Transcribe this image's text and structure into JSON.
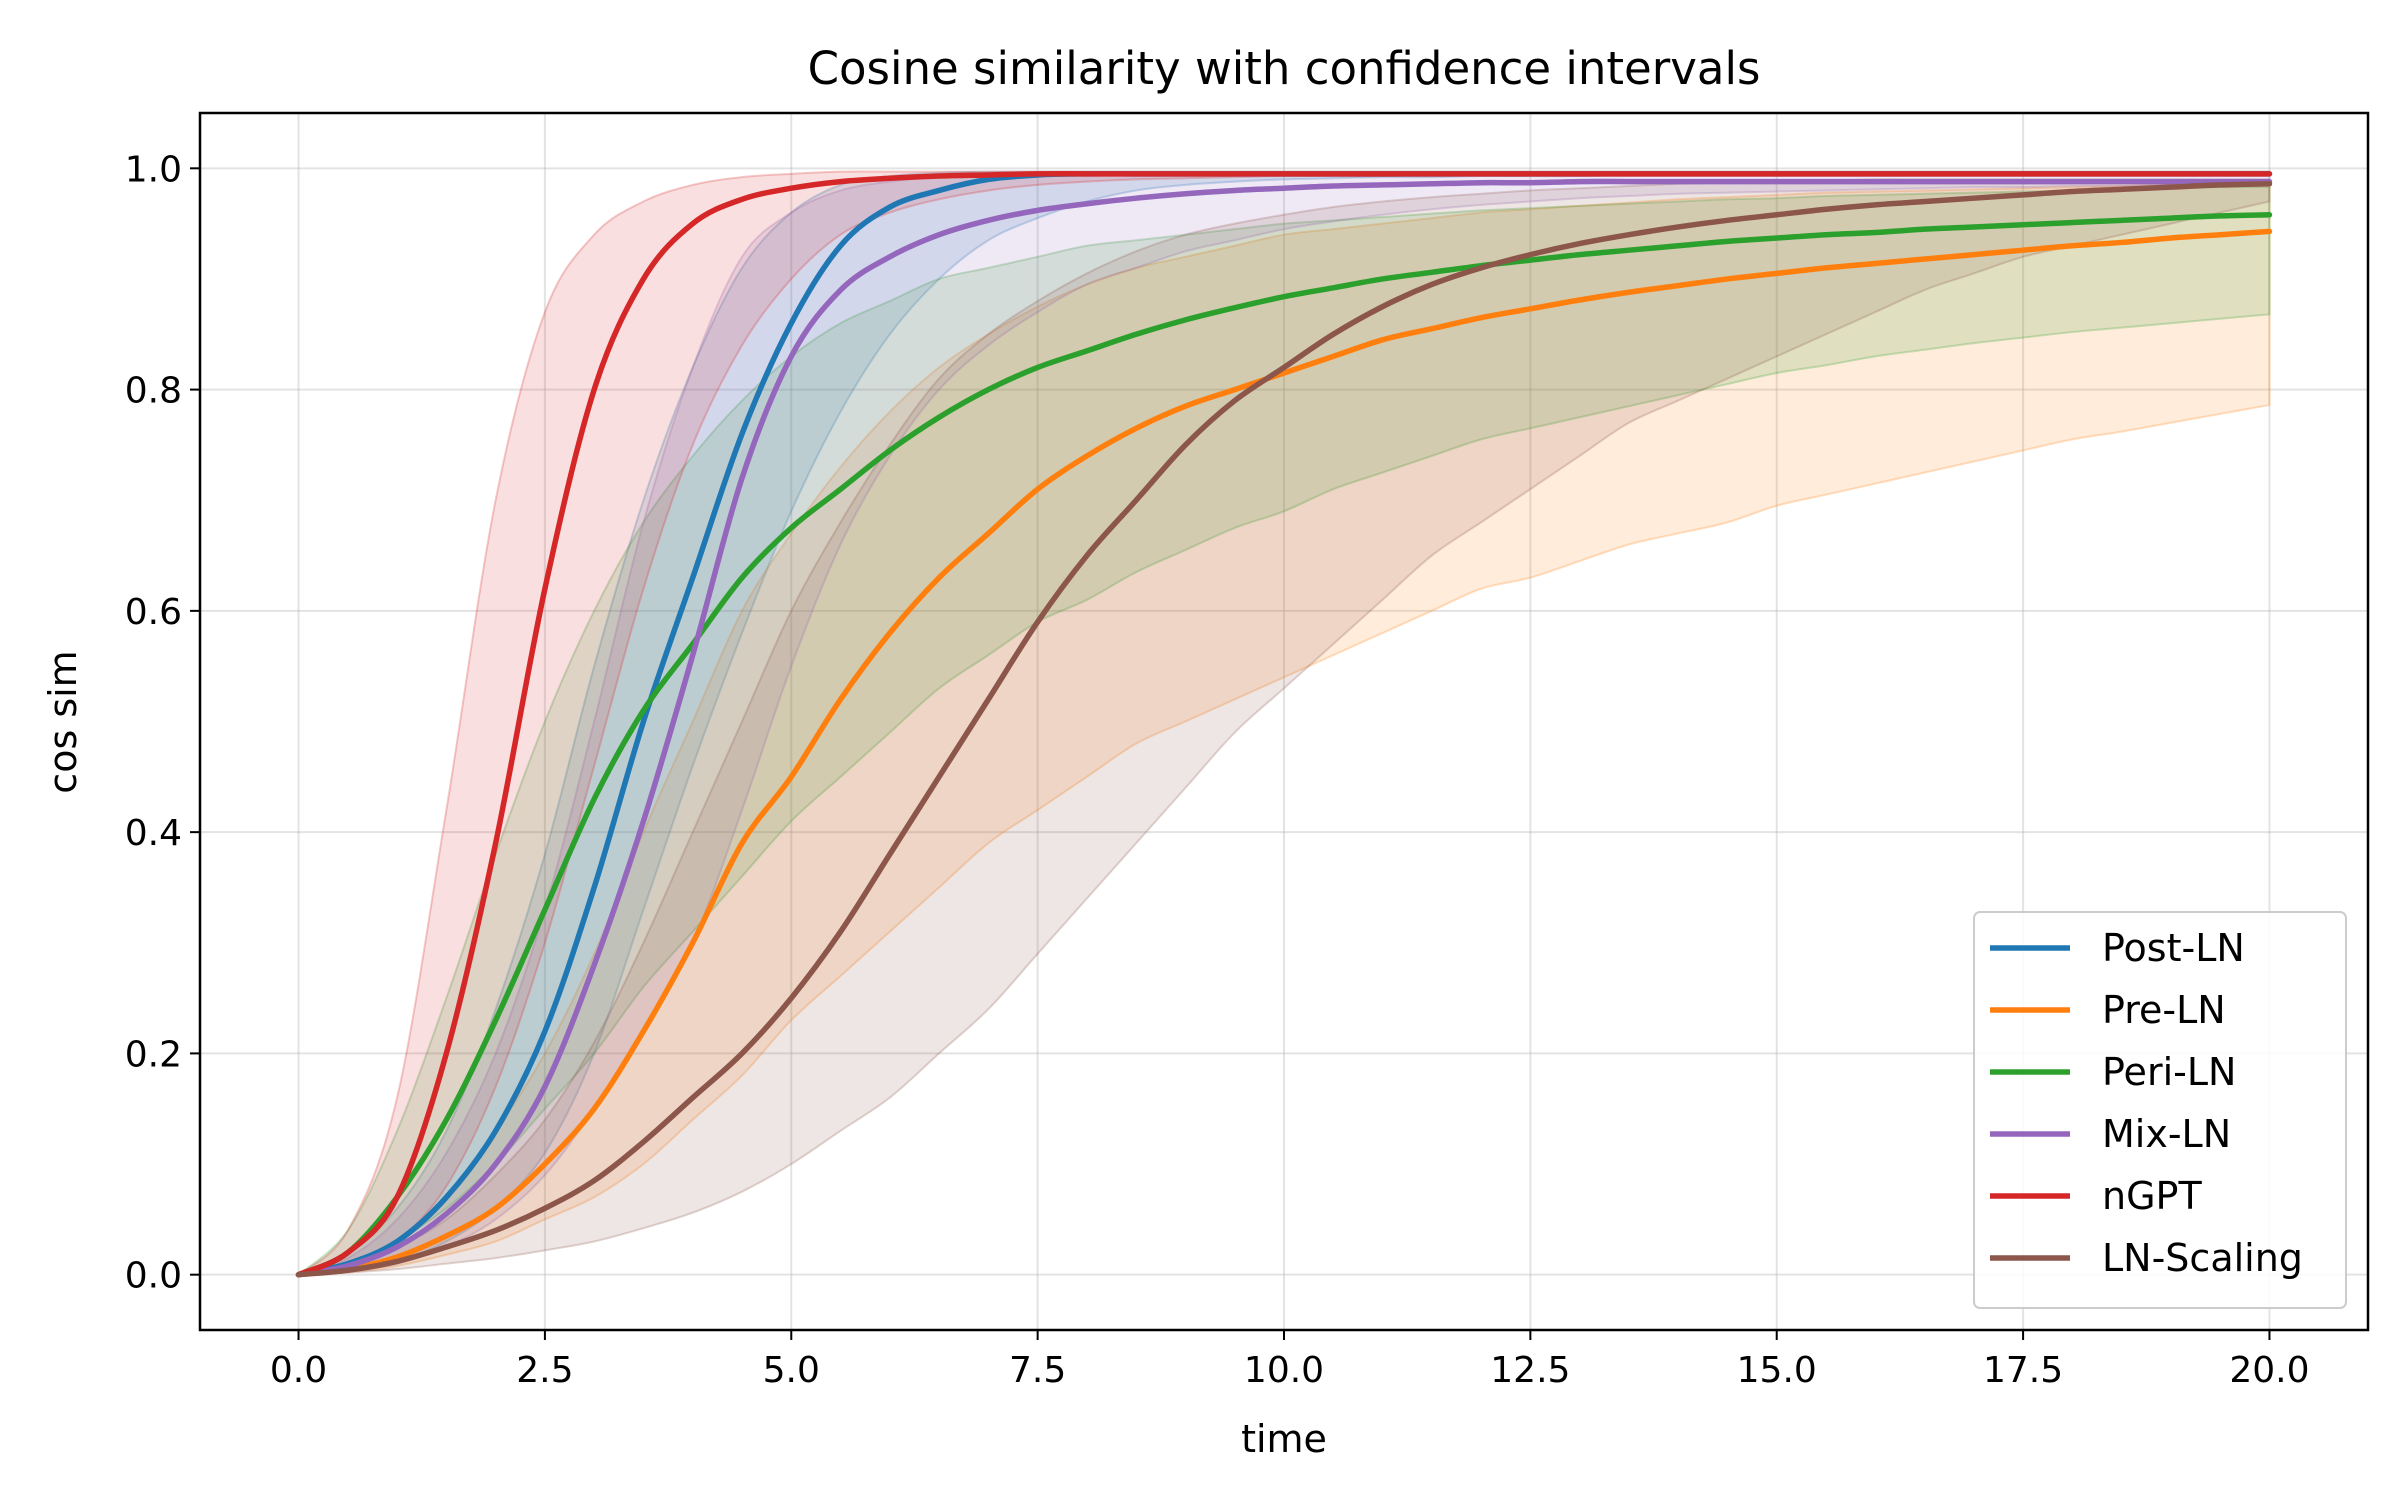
{
  "chart_data": {
    "type": "line",
    "title": "Cosine similarity with confidence intervals",
    "xlabel": "time",
    "ylabel": "cos sim",
    "xlim": [
      -1.0,
      21.0
    ],
    "ylim": [
      -0.05,
      1.05
    ],
    "grid": true,
    "legend_position": "lower-right",
    "x_ticks": [
      0.0,
      2.5,
      5.0,
      7.5,
      10.0,
      12.5,
      15.0,
      17.5,
      20.0
    ],
    "x_tick_labels": [
      "0.0",
      "2.5",
      "5.0",
      "7.5",
      "10.0",
      "12.5",
      "15.0",
      "17.5",
      "20.0"
    ],
    "y_ticks": [
      0.0,
      0.2,
      0.4,
      0.6,
      0.8,
      1.0
    ],
    "y_tick_labels": [
      "0.0",
      "0.2",
      "0.4",
      "0.6",
      "0.8",
      "1.0"
    ],
    "x": [
      0,
      0.5,
      1,
      1.5,
      2,
      2.5,
      3,
      3.5,
      4,
      4.5,
      5,
      5.5,
      6,
      6.5,
      7,
      7.5,
      8,
      8.5,
      9,
      9.5,
      10,
      10.5,
      11,
      11.5,
      12,
      12.5,
      13,
      13.5,
      14,
      14.5,
      15,
      15.5,
      16,
      16.5,
      17,
      17.5,
      18,
      18.5,
      19,
      19.5,
      20
    ],
    "series": [
      {
        "name": "Post-LN",
        "color": "#1f77b4",
        "values": [
          0.0,
          0.01,
          0.03,
          0.07,
          0.13,
          0.22,
          0.35,
          0.5,
          0.63,
          0.76,
          0.86,
          0.93,
          0.965,
          0.98,
          0.99,
          0.994,
          0.995,
          0.995,
          0.995,
          0.995,
          0.995,
          0.995,
          0.995,
          0.995,
          0.995,
          0.995,
          0.995,
          0.995,
          0.995,
          0.995,
          0.995,
          0.995,
          0.995,
          0.995,
          0.995,
          0.995,
          0.995,
          0.995,
          0.995,
          0.995,
          0.995
        ],
        "lower": [
          0.0,
          0.004,
          0.012,
          0.03,
          0.06,
          0.11,
          0.2,
          0.33,
          0.46,
          0.58,
          0.69,
          0.78,
          0.85,
          0.9,
          0.935,
          0.955,
          0.97,
          0.98,
          0.985,
          0.988,
          0.99,
          0.991,
          0.992,
          0.992,
          0.993,
          0.993,
          0.993,
          0.994,
          0.994,
          0.994,
          0.994,
          0.994,
          0.994,
          0.994,
          0.994,
          0.994,
          0.994,
          0.994,
          0.994,
          0.994,
          0.994
        ],
        "upper": [
          0.0,
          0.02,
          0.06,
          0.13,
          0.24,
          0.38,
          0.55,
          0.7,
          0.82,
          0.91,
          0.96,
          0.985,
          0.993,
          0.996,
          0.997,
          0.997,
          0.997,
          0.997,
          0.997,
          0.997,
          0.997,
          0.997,
          0.997,
          0.997,
          0.997,
          0.997,
          0.997,
          0.997,
          0.997,
          0.997,
          0.997,
          0.997,
          0.997,
          0.997,
          0.997,
          0.997,
          0.997,
          0.997,
          0.997,
          0.997,
          0.997
        ]
      },
      {
        "name": "Pre-LN",
        "color": "#ff7f0e",
        "values": [
          0.0,
          0.005,
          0.016,
          0.035,
          0.06,
          0.1,
          0.15,
          0.22,
          0.3,
          0.39,
          0.45,
          0.52,
          0.58,
          0.63,
          0.67,
          0.71,
          0.74,
          0.765,
          0.785,
          0.8,
          0.815,
          0.83,
          0.845,
          0.855,
          0.865,
          0.873,
          0.881,
          0.888,
          0.894,
          0.9,
          0.905,
          0.91,
          0.914,
          0.918,
          0.922,
          0.926,
          0.93,
          0.933,
          0.937,
          0.94,
          0.943
        ],
        "lower": [
          0.0,
          0.002,
          0.008,
          0.018,
          0.03,
          0.05,
          0.07,
          0.1,
          0.14,
          0.18,
          0.23,
          0.27,
          0.31,
          0.35,
          0.39,
          0.42,
          0.45,
          0.48,
          0.5,
          0.52,
          0.54,
          0.56,
          0.58,
          0.6,
          0.62,
          0.63,
          0.645,
          0.66,
          0.67,
          0.68,
          0.695,
          0.705,
          0.715,
          0.725,
          0.735,
          0.745,
          0.755,
          0.762,
          0.77,
          0.778,
          0.786
        ],
        "upper": [
          0.0,
          0.01,
          0.03,
          0.07,
          0.13,
          0.2,
          0.29,
          0.4,
          0.5,
          0.6,
          0.67,
          0.73,
          0.78,
          0.82,
          0.85,
          0.875,
          0.895,
          0.91,
          0.92,
          0.93,
          0.94,
          0.945,
          0.95,
          0.955,
          0.96,
          0.963,
          0.966,
          0.969,
          0.972,
          0.974,
          0.976,
          0.978,
          0.979,
          0.98,
          0.981,
          0.982,
          0.983,
          0.984,
          0.985,
          0.985,
          0.985
        ]
      },
      {
        "name": "Peri-LN",
        "color": "#2ca02c",
        "values": [
          0.0,
          0.02,
          0.07,
          0.14,
          0.23,
          0.33,
          0.43,
          0.51,
          0.57,
          0.63,
          0.675,
          0.71,
          0.745,
          0.775,
          0.8,
          0.82,
          0.835,
          0.85,
          0.863,
          0.874,
          0.884,
          0.892,
          0.9,
          0.906,
          0.912,
          0.917,
          0.922,
          0.926,
          0.93,
          0.934,
          0.937,
          0.94,
          0.942,
          0.945,
          0.947,
          0.949,
          0.951,
          0.953,
          0.955,
          0.957,
          0.958
        ],
        "lower": [
          0.0,
          0.008,
          0.03,
          0.06,
          0.1,
          0.15,
          0.2,
          0.26,
          0.31,
          0.36,
          0.41,
          0.45,
          0.49,
          0.53,
          0.56,
          0.59,
          0.61,
          0.635,
          0.655,
          0.675,
          0.69,
          0.71,
          0.725,
          0.74,
          0.755,
          0.765,
          0.775,
          0.785,
          0.795,
          0.805,
          0.815,
          0.822,
          0.83,
          0.836,
          0.842,
          0.847,
          0.852,
          0.856,
          0.86,
          0.864,
          0.868
        ],
        "upper": [
          0.0,
          0.04,
          0.13,
          0.25,
          0.38,
          0.5,
          0.6,
          0.68,
          0.74,
          0.79,
          0.83,
          0.86,
          0.88,
          0.9,
          0.91,
          0.92,
          0.93,
          0.935,
          0.94,
          0.945,
          0.95,
          0.953,
          0.956,
          0.959,
          0.962,
          0.964,
          0.966,
          0.968,
          0.97,
          0.972,
          0.973,
          0.975,
          0.976,
          0.977,
          0.978,
          0.979,
          0.98,
          0.981,
          0.982,
          0.983,
          0.983
        ]
      },
      {
        "name": "Mix-LN",
        "color": "#9467bd",
        "values": [
          0.0,
          0.008,
          0.025,
          0.055,
          0.1,
          0.17,
          0.28,
          0.41,
          0.56,
          0.72,
          0.83,
          0.89,
          0.92,
          0.94,
          0.953,
          0.962,
          0.968,
          0.973,
          0.977,
          0.98,
          0.982,
          0.984,
          0.985,
          0.986,
          0.987,
          0.987,
          0.988,
          0.988,
          0.988,
          0.988,
          0.988,
          0.988,
          0.988,
          0.988,
          0.988,
          0.988,
          0.988,
          0.988,
          0.988,
          0.988,
          0.988
        ],
        "lower": [
          0.0,
          0.003,
          0.01,
          0.025,
          0.05,
          0.09,
          0.15,
          0.22,
          0.3,
          0.42,
          0.55,
          0.66,
          0.74,
          0.8,
          0.84,
          0.87,
          0.895,
          0.91,
          0.925,
          0.935,
          0.945,
          0.952,
          0.958,
          0.963,
          0.967,
          0.97,
          0.973,
          0.975,
          0.977,
          0.978,
          0.979,
          0.98,
          0.981,
          0.982,
          0.983,
          0.983,
          0.984,
          0.984,
          0.985,
          0.985,
          0.985
        ],
        "upper": [
          0.0,
          0.015,
          0.05,
          0.11,
          0.2,
          0.33,
          0.5,
          0.68,
          0.82,
          0.92,
          0.96,
          0.98,
          0.988,
          0.992,
          0.993,
          0.994,
          0.994,
          0.994,
          0.994,
          0.994,
          0.994,
          0.994,
          0.994,
          0.994,
          0.994,
          0.994,
          0.994,
          0.994,
          0.994,
          0.994,
          0.994,
          0.994,
          0.994,
          0.994,
          0.994,
          0.994,
          0.994,
          0.994,
          0.994,
          0.994,
          0.994
        ]
      },
      {
        "name": "nGPT",
        "color": "#d62728",
        "values": [
          0.0,
          0.02,
          0.07,
          0.2,
          0.39,
          0.62,
          0.8,
          0.9,
          0.95,
          0.972,
          0.982,
          0.988,
          0.991,
          0.993,
          0.994,
          0.995,
          0.995,
          0.995,
          0.995,
          0.995,
          0.995,
          0.995,
          0.995,
          0.995,
          0.995,
          0.995,
          0.995,
          0.995,
          0.995,
          0.995,
          0.995,
          0.995,
          0.995,
          0.995,
          0.995,
          0.995,
          0.995,
          0.995,
          0.995,
          0.995,
          0.995
        ],
        "lower": [
          0.0,
          0.008,
          0.03,
          0.08,
          0.17,
          0.3,
          0.46,
          0.62,
          0.75,
          0.84,
          0.9,
          0.94,
          0.96,
          0.972,
          0.98,
          0.985,
          0.988,
          0.99,
          0.991,
          0.992,
          0.993,
          0.993,
          0.993,
          0.994,
          0.994,
          0.994,
          0.994,
          0.994,
          0.994,
          0.994,
          0.994,
          0.994,
          0.994,
          0.994,
          0.994,
          0.994,
          0.994,
          0.994,
          0.994,
          0.994,
          0.994
        ],
        "upper": [
          0.0,
          0.04,
          0.16,
          0.42,
          0.7,
          0.87,
          0.94,
          0.97,
          0.985,
          0.992,
          0.995,
          0.997,
          0.997,
          0.997,
          0.997,
          0.997,
          0.997,
          0.997,
          0.997,
          0.997,
          0.997,
          0.997,
          0.997,
          0.997,
          0.997,
          0.997,
          0.997,
          0.997,
          0.997,
          0.997,
          0.997,
          0.997,
          0.997,
          0.997,
          0.997,
          0.997,
          0.997,
          0.997,
          0.997,
          0.997,
          0.997
        ]
      },
      {
        "name": "LN-Scaling",
        "color": "#8c564b",
        "values": [
          0.0,
          0.004,
          0.012,
          0.025,
          0.04,
          0.06,
          0.085,
          0.12,
          0.16,
          0.2,
          0.25,
          0.31,
          0.38,
          0.45,
          0.52,
          0.59,
          0.65,
          0.7,
          0.75,
          0.79,
          0.82,
          0.85,
          0.875,
          0.895,
          0.91,
          0.922,
          0.932,
          0.94,
          0.947,
          0.953,
          0.958,
          0.963,
          0.967,
          0.97,
          0.973,
          0.976,
          0.979,
          0.981,
          0.983,
          0.985,
          0.986
        ],
        "lower": [
          0.0,
          0.002,
          0.005,
          0.01,
          0.015,
          0.022,
          0.03,
          0.042,
          0.056,
          0.075,
          0.1,
          0.13,
          0.16,
          0.2,
          0.24,
          0.29,
          0.34,
          0.39,
          0.44,
          0.49,
          0.53,
          0.57,
          0.61,
          0.65,
          0.68,
          0.71,
          0.74,
          0.77,
          0.79,
          0.81,
          0.83,
          0.85,
          0.87,
          0.89,
          0.905,
          0.92,
          0.93,
          0.94,
          0.95,
          0.96,
          0.97
        ],
        "upper": [
          0.0,
          0.008,
          0.025,
          0.05,
          0.09,
          0.14,
          0.21,
          0.3,
          0.4,
          0.5,
          0.6,
          0.68,
          0.75,
          0.81,
          0.85,
          0.88,
          0.905,
          0.925,
          0.94,
          0.95,
          0.958,
          0.965,
          0.97,
          0.974,
          0.977,
          0.98,
          0.982,
          0.984,
          0.986,
          0.987,
          0.988,
          0.989,
          0.99,
          0.99,
          0.99,
          0.99,
          0.99,
          0.99,
          0.99,
          0.99,
          0.99
        ]
      }
    ]
  }
}
